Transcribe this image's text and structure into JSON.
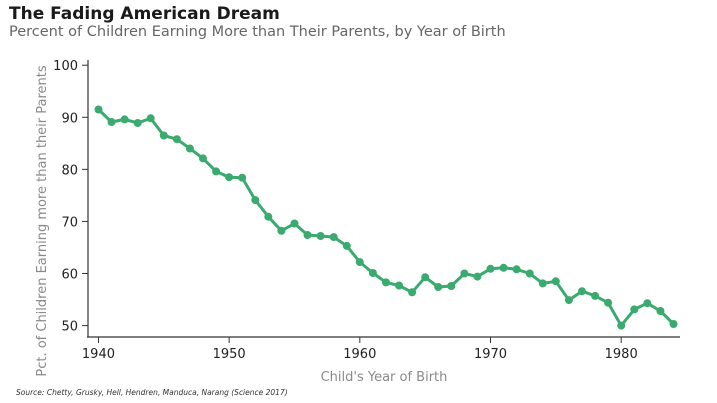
{
  "header": {
    "title": "The Fading American Dream",
    "subtitle": "Percent of Children Earning More than Their Parents, by Year of Birth"
  },
  "footer": {
    "source": "Source: Chetty, Grusky, Hell, Hendren, Manduca, Narang (Science 2017)"
  },
  "colors": {
    "series": "#3aaa6e",
    "axis": "#333333"
  },
  "chart_data": {
    "type": "line",
    "title": "The Fading American Dream",
    "subtitle": "Percent of Children Earning More than Their Parents, by Year of Birth",
    "xlabel": "Child's Year of Birth",
    "ylabel": "Pct. of Children Earning more than their Parents",
    "xlim": [
      1939.2,
      1984.5
    ],
    "ylim": [
      48,
      101
    ],
    "xticks": [
      1940,
      1950,
      1960,
      1970,
      1980
    ],
    "yticks": [
      50,
      60,
      70,
      80,
      90,
      100
    ],
    "grid": false,
    "legend": "none",
    "x": [
      1940,
      1941,
      1942,
      1943,
      1944,
      1945,
      1946,
      1947,
      1948,
      1949,
      1950,
      1951,
      1952,
      1953,
      1954,
      1955,
      1956,
      1957,
      1958,
      1959,
      1960,
      1961,
      1962,
      1963,
      1964,
      1965,
      1966,
      1967,
      1968,
      1969,
      1970,
      1971,
      1972,
      1973,
      1974,
      1975,
      1976,
      1977,
      1978,
      1979,
      1980,
      1981,
      1982,
      1983,
      1984
    ],
    "series": [
      {
        "values": [
          91.5,
          89.1,
          89.6,
          88.9,
          89.8,
          86.5,
          85.8,
          84.0,
          82.1,
          79.6,
          78.5,
          78.4,
          74.1,
          70.9,
          68.2,
          69.6,
          67.4,
          67.2,
          67.0,
          65.3,
          62.2,
          60.1,
          58.3,
          57.7,
          56.4,
          59.3,
          57.4,
          57.6,
          60.0,
          59.4,
          60.9,
          61.1,
          60.8,
          60.0,
          58.1,
          58.5,
          54.9,
          56.6,
          55.7,
          54.4,
          50.0,
          53.1,
          54.3,
          52.8,
          50.3
        ]
      }
    ]
  }
}
